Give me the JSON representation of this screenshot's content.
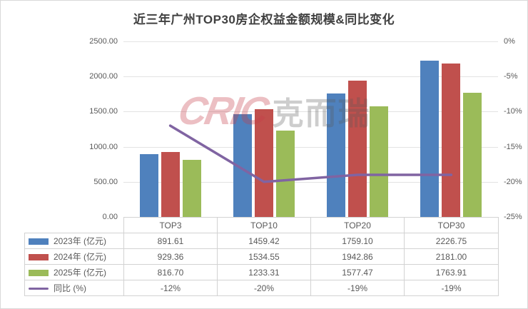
{
  "title": "近三年广州TOP30房企权益金额规模&同比变化",
  "watermark": {
    "logo": "CRIC",
    "text": "克而瑞"
  },
  "chart_data": {
    "type": "bar",
    "subtype": "grouped-bars-with-secondary-axis-line",
    "title": "近三年广州TOP30房企权益金额规模&同比变化",
    "categories": [
      "TOP3",
      "TOP10",
      "TOP20",
      "TOP30"
    ],
    "series": [
      {
        "name": "2023年 (亿元)",
        "type": "bar",
        "color": "#4F81BD",
        "axis": "left",
        "values": [
          891.61,
          1459.42,
          1759.1,
          2226.75
        ],
        "display": [
          "891.61",
          "1459.42",
          "1759.10",
          "2226.75"
        ]
      },
      {
        "name": "2024年 (亿元)",
        "type": "bar",
        "color": "#C0504D",
        "axis": "left",
        "values": [
          929.36,
          1534.55,
          1942.86,
          2181.0
        ],
        "display": [
          "929.36",
          "1534.55",
          "1942.86",
          "2181.00"
        ]
      },
      {
        "name": "2025年 (亿元)",
        "type": "bar",
        "color": "#9BBB59",
        "axis": "left",
        "values": [
          816.7,
          1233.31,
          1577.47,
          1763.91
        ],
        "display": [
          "816.70",
          "1233.31",
          "1577.47",
          "1763.91"
        ]
      },
      {
        "name": "同比 (%)",
        "type": "line",
        "color": "#8064A2",
        "axis": "right",
        "values": [
          -12,
          -20,
          -19,
          -19
        ],
        "display": [
          "-12%",
          "-20%",
          "-19%",
          "-19%"
        ]
      }
    ],
    "left_axis": {
      "min": 0,
      "max": 2500,
      "step": 500,
      "ticks": [
        "0.00",
        "500.00",
        "1000.00",
        "1500.00",
        "2000.00",
        "2500.00"
      ]
    },
    "right_axis": {
      "min": -25,
      "max": 0,
      "step": 5,
      "ticks": [
        "0%",
        "-5%",
        "-10%",
        "-15%",
        "-20%",
        "-25%"
      ]
    },
    "grid": true,
    "legend_position": "data-table-left"
  }
}
